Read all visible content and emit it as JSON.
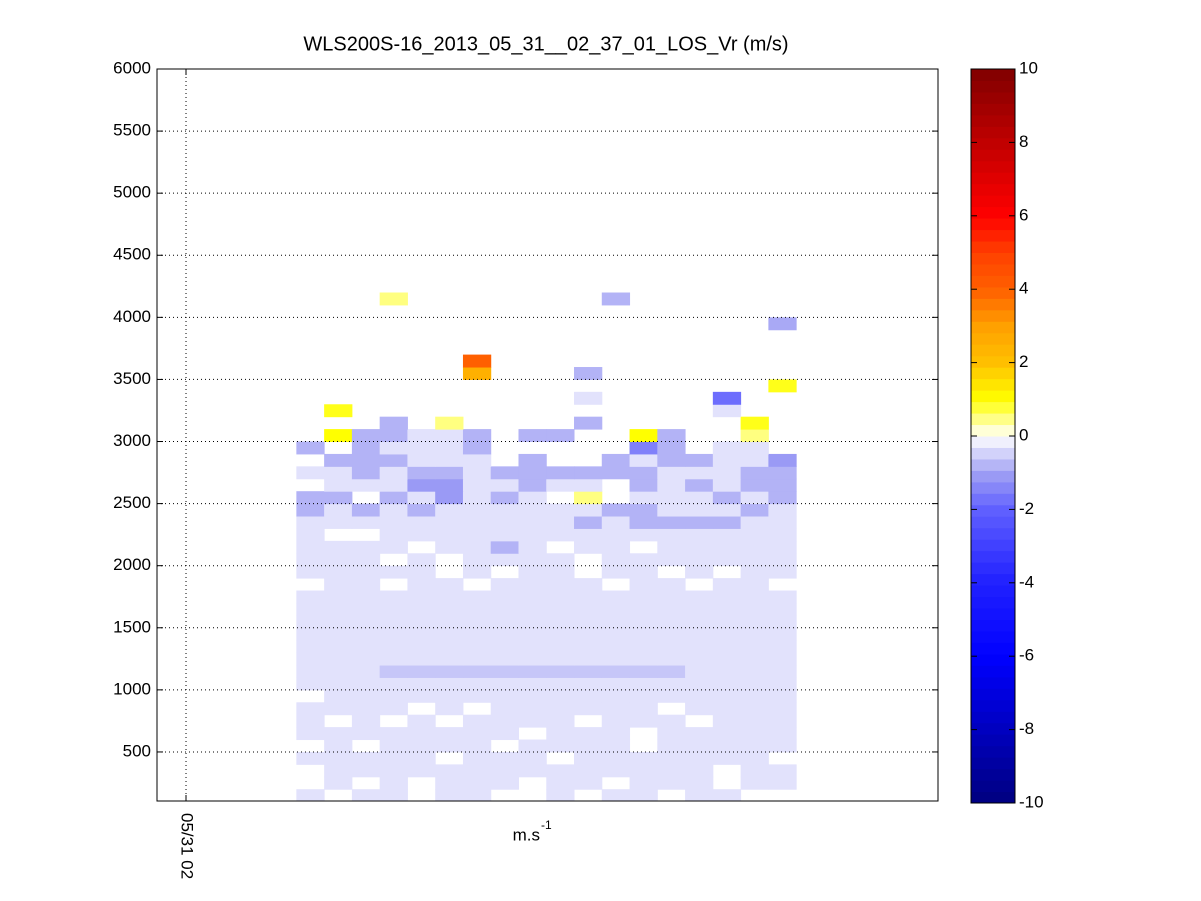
{
  "chart_data": {
    "type": "heatmap",
    "title": "WLS200S-16_2013_05_31__02_37_01_LOS_Vr (m/s)",
    "xlabel": "m.s",
    "xlabel_superscript": "-1",
    "x": [
      2.62,
      2.776,
      2.932,
      3.088,
      3.244,
      3.4,
      3.556,
      3.712,
      3.868,
      4.024,
      4.18,
      4.336,
      4.492,
      4.648,
      4.804,
      4.96,
      5.116,
      5.272,
      5.428
    ],
    "y": [
      100,
      200,
      300,
      400,
      500,
      600,
      700,
      800,
      900,
      1000,
      1100,
      1200,
      1300,
      1400,
      1500,
      1600,
      1700,
      1800,
      1900,
      2000,
      2100,
      2200,
      2300,
      2400,
      2500,
      2600,
      2700,
      2800,
      2900,
      3000,
      3100,
      3200,
      3300,
      3400,
      3500,
      3600,
      3700,
      3800,
      3900,
      4000,
      4100,
      4200
    ],
    "z": [
      [
        -0.3,
        null,
        -0.3,
        -0.3,
        null,
        -0.3,
        -0.3,
        null,
        null,
        -0.3,
        null,
        -0.3,
        -0.3,
        null,
        -0.3,
        -0.3,
        null,
        null
      ],
      [
        null,
        -0.3,
        null,
        -0.3,
        null,
        -0.3,
        -0.3,
        -0.3,
        null,
        -0.3,
        -0.3,
        null,
        -0.3,
        -0.3,
        -0.3,
        null,
        -0.3,
        -0.3
      ],
      [
        null,
        -0.3,
        -0.3,
        -0.3,
        -0.3,
        -0.3,
        -0.3,
        -0.3,
        -0.3,
        -0.3,
        -0.3,
        -0.3,
        -0.3,
        -0.3,
        -0.3,
        null,
        -0.3,
        -0.3
      ],
      [
        -0.3,
        -0.3,
        -0.3,
        -0.3,
        -0.3,
        null,
        -0.3,
        -0.3,
        -0.3,
        null,
        -0.3,
        -0.3,
        -0.3,
        -0.3,
        -0.3,
        -0.3,
        -0.3,
        null
      ],
      [
        null,
        -0.3,
        null,
        -0.3,
        -0.3,
        -0.3,
        -0.3,
        null,
        -0.3,
        -0.3,
        -0.3,
        -0.3,
        null,
        -0.3,
        -0.3,
        -0.3,
        -0.3,
        -0.3
      ],
      [
        -0.3,
        -0.3,
        -0.3,
        -0.3,
        -0.3,
        -0.3,
        -0.3,
        -0.3,
        null,
        -0.3,
        -0.3,
        -0.3,
        null,
        -0.3,
        -0.3,
        -0.3,
        -0.3,
        -0.3
      ],
      [
        -0.3,
        null,
        -0.3,
        null,
        -0.3,
        null,
        -0.3,
        -0.3,
        -0.3,
        -0.3,
        null,
        -0.3,
        -0.3,
        -0.3,
        null,
        -0.3,
        -0.3,
        -0.3
      ],
      [
        -0.3,
        -0.3,
        -0.3,
        -0.3,
        null,
        -0.3,
        null,
        -0.3,
        -0.3,
        -0.3,
        -0.3,
        -0.3,
        -0.3,
        null,
        -0.3,
        -0.3,
        -0.3,
        -0.3
      ],
      [
        null,
        -0.3,
        -0.3,
        -0.3,
        -0.3,
        -0.3,
        -0.3,
        -0.3,
        -0.3,
        -0.3,
        -0.3,
        -0.3,
        -0.3,
        -0.3,
        -0.3,
        -0.3,
        -0.3,
        -0.3
      ],
      [
        -0.3,
        -0.3,
        -0.3,
        -0.3,
        -0.3,
        -0.3,
        -0.3,
        -0.3,
        -0.3,
        -0.3,
        -0.3,
        -0.3,
        -0.3,
        -0.3,
        -0.3,
        -0.3,
        -0.3,
        -0.3
      ],
      [
        -0.3,
        -0.3,
        -0.3,
        -0.6,
        -0.6,
        -0.6,
        -0.6,
        -0.6,
        -0.6,
        -0.6,
        -0.6,
        -0.6,
        -0.6,
        -0.6,
        -0.3,
        -0.3,
        -0.3,
        -0.3
      ],
      [
        -0.3,
        -0.3,
        -0.3,
        -0.3,
        -0.3,
        -0.3,
        -0.3,
        -0.3,
        -0.3,
        -0.3,
        -0.3,
        -0.3,
        -0.3,
        -0.3,
        -0.3,
        -0.3,
        -0.3,
        -0.3
      ],
      [
        -0.3,
        -0.3,
        -0.3,
        -0.3,
        -0.3,
        -0.3,
        -0.3,
        -0.3,
        -0.3,
        -0.3,
        -0.3,
        -0.3,
        -0.3,
        -0.3,
        -0.3,
        -0.3,
        -0.3,
        -0.3
      ],
      [
        -0.3,
        -0.3,
        -0.3,
        -0.3,
        -0.3,
        -0.3,
        -0.3,
        -0.3,
        -0.3,
        -0.3,
        -0.3,
        -0.3,
        -0.3,
        -0.3,
        -0.3,
        -0.3,
        -0.3,
        -0.3
      ],
      [
        -0.3,
        -0.3,
        -0.3,
        -0.3,
        -0.3,
        -0.3,
        -0.3,
        -0.3,
        -0.3,
        -0.3,
        -0.3,
        -0.3,
        -0.3,
        -0.3,
        -0.3,
        -0.3,
        -0.3,
        -0.3
      ],
      [
        -0.3,
        -0.3,
        -0.3,
        -0.3,
        -0.3,
        -0.3,
        -0.3,
        -0.3,
        -0.3,
        -0.3,
        -0.3,
        -0.3,
        -0.3,
        -0.3,
        -0.3,
        -0.3,
        -0.3,
        -0.3
      ],
      [
        -0.3,
        -0.3,
        -0.3,
        -0.3,
        -0.3,
        -0.3,
        -0.3,
        -0.3,
        -0.3,
        -0.3,
        -0.3,
        -0.3,
        -0.3,
        -0.3,
        -0.3,
        -0.3,
        -0.3,
        -0.3
      ],
      [
        null,
        -0.3,
        -0.3,
        null,
        -0.3,
        -0.3,
        null,
        -0.3,
        -0.3,
        -0.3,
        -0.3,
        null,
        -0.3,
        -0.3,
        null,
        -0.3,
        -0.3,
        null
      ],
      [
        -0.3,
        -0.3,
        -0.3,
        -0.3,
        -0.3,
        null,
        -0.3,
        null,
        -0.3,
        -0.3,
        null,
        -0.3,
        -0.3,
        null,
        -0.3,
        null,
        -0.3,
        -0.3
      ],
      [
        -0.3,
        -0.3,
        -0.3,
        null,
        -0.3,
        null,
        -0.3,
        -0.3,
        -0.3,
        -0.3,
        null,
        -0.3,
        -0.3,
        -0.3,
        -0.3,
        -0.3,
        -0.3,
        -0.3
      ],
      [
        -0.3,
        -0.3,
        -0.3,
        -0.3,
        null,
        -0.3,
        -0.3,
        -0.8,
        -0.3,
        null,
        -0.3,
        -0.3,
        null,
        -0.3,
        -0.3,
        -0.3,
        -0.3,
        -0.3
      ],
      [
        -0.3,
        null,
        null,
        -0.3,
        -0.3,
        -0.3,
        -0.3,
        -0.3,
        -0.3,
        -0.3,
        -0.3,
        -0.3,
        -0.3,
        -0.3,
        -0.3,
        -0.3,
        -0.3,
        -0.3
      ],
      [
        -0.3,
        -0.3,
        -0.3,
        -0.3,
        -0.3,
        -0.3,
        -0.3,
        -0.3,
        -0.3,
        -0.3,
        -0.8,
        -0.3,
        -0.8,
        -0.8,
        -0.8,
        -0.8,
        -0.3,
        -0.3
      ],
      [
        -0.8,
        -0.3,
        -0.8,
        -0.3,
        -0.8,
        -0.3,
        -0.3,
        -0.3,
        -0.3,
        -0.3,
        -0.3,
        -0.8,
        -0.8,
        -0.3,
        -0.3,
        -0.3,
        -0.8,
        -0.3
      ],
      [
        -0.8,
        -0.8,
        null,
        -0.8,
        -0.3,
        -1.1,
        -0.3,
        -0.8,
        -0.3,
        null,
        0.5,
        null,
        -0.3,
        -0.3,
        -0.3,
        -0.8,
        -0.3,
        -0.8
      ],
      [
        null,
        -0.3,
        -0.3,
        -0.3,
        -1.1,
        -1.1,
        -0.3,
        -0.3,
        -0.8,
        -0.3,
        -0.3,
        null,
        -0.8,
        -0.3,
        -0.8,
        -0.3,
        -0.8,
        -0.8
      ],
      [
        -0.3,
        -0.3,
        -0.8,
        -0.3,
        -0.8,
        -0.8,
        -0.3,
        -0.8,
        -0.8,
        -0.8,
        -0.8,
        -0.8,
        -0.8,
        -0.3,
        -0.3,
        -0.3,
        -0.8,
        -0.8
      ],
      [
        null,
        -0.8,
        -0.8,
        -0.8,
        -0.3,
        -0.3,
        -0.3,
        null,
        -0.8,
        null,
        null,
        -0.8,
        -0.3,
        -0.8,
        -0.8,
        -0.3,
        -0.3,
        -1.1
      ],
      [
        -0.8,
        null,
        -0.8,
        -0.3,
        -0.3,
        -0.3,
        -0.8,
        null,
        null,
        null,
        null,
        null,
        -1.5,
        -0.8,
        null,
        -0.3,
        -0.3,
        null
      ],
      [
        null,
        1,
        -0.8,
        -0.8,
        -0.3,
        -0.3,
        -0.8,
        null,
        -0.8,
        -0.8,
        null,
        null,
        1,
        -0.8,
        null,
        null,
        0.5,
        null
      ],
      [
        null,
        null,
        null,
        -0.8,
        null,
        0.5,
        null,
        null,
        null,
        null,
        -0.8,
        null,
        null,
        null,
        null,
        null,
        0.9,
        null
      ],
      [
        null,
        0.9,
        null,
        null,
        null,
        null,
        null,
        null,
        null,
        null,
        null,
        null,
        null,
        null,
        null,
        -0.3,
        null,
        null
      ],
      [
        null,
        null,
        null,
        null,
        null,
        null,
        null,
        null,
        null,
        null,
        -0.3,
        null,
        null,
        null,
        null,
        -1.8,
        null,
        null
      ],
      [
        null,
        null,
        null,
        null,
        null,
        null,
        null,
        null,
        null,
        null,
        null,
        null,
        null,
        null,
        null,
        null,
        null,
        0.9
      ],
      [
        null,
        null,
        null,
        null,
        null,
        null,
        2.5,
        null,
        null,
        null,
        -0.8,
        null,
        null,
        null,
        null,
        null,
        null,
        null
      ],
      [
        null,
        null,
        null,
        null,
        null,
        null,
        4,
        null,
        null,
        null,
        null,
        null,
        null,
        null,
        null,
        null,
        null,
        null
      ],
      [
        null,
        null,
        null,
        null,
        null,
        null,
        null,
        null,
        null,
        null,
        null,
        null,
        null,
        null,
        null,
        null,
        null,
        null
      ],
      [
        null,
        null,
        null,
        null,
        null,
        null,
        null,
        null,
        null,
        null,
        null,
        null,
        null,
        null,
        null,
        null,
        null,
        null
      ],
      [
        null,
        null,
        null,
        null,
        null,
        null,
        null,
        null,
        null,
        null,
        null,
        null,
        null,
        null,
        null,
        null,
        null,
        -0.9
      ],
      [
        null,
        null,
        null,
        null,
        null,
        null,
        null,
        null,
        null,
        null,
        null,
        null,
        null,
        null,
        null,
        null,
        null,
        null
      ],
      [
        null,
        null,
        null,
        0.5,
        null,
        null,
        null,
        null,
        null,
        null,
        null,
        -0.8,
        null,
        null,
        null,
        null,
        null,
        null
      ]
    ],
    "xlim": [
      1.837,
      6.225
    ],
    "xticks": [
      {
        "value": 2,
        "label": "05/31 02"
      }
    ],
    "ylim": [
      105,
      6000
    ],
    "yticks": [
      500,
      1000,
      1500,
      2000,
      2500,
      3000,
      3500,
      4000,
      4500,
      5000,
      5500,
      6000
    ],
    "grid": true,
    "clim": [
      -10,
      10
    ],
    "cticks": [
      -10,
      -8,
      -6,
      -4,
      -2,
      0,
      2,
      4,
      6,
      8,
      10
    ],
    "colormap": [
      "#00007f",
      "#00009f",
      "#0000bf",
      "#0000df",
      "#0000ff",
      "#1010ff",
      "#2020ff",
      "#4040ff",
      "#6060ff",
      "#a0a0f4",
      "#ffffff",
      "#ffff00",
      "#ffc000",
      "#ffa000",
      "#ff6000",
      "#ff4000",
      "#ff0000",
      "#e00000",
      "#c00000",
      "#a00000",
      "#800000"
    ]
  }
}
